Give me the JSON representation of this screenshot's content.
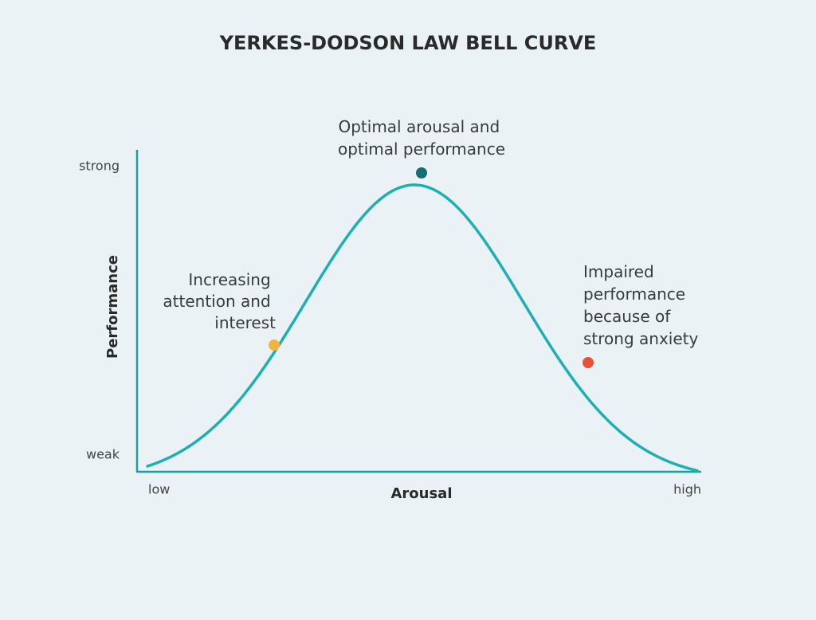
{
  "title": "YERKES-DODSON LAW BELL CURVE",
  "y_axis": {
    "label": "Performance",
    "top": "strong",
    "bottom": "weak"
  },
  "x_axis": {
    "label": "Arousal",
    "left": "low",
    "right": "high"
  },
  "annotations": [
    {
      "lines": [
        "Increasing",
        "attention and",
        "interest"
      ]
    },
    {
      "lines": [
        "Optimal arousal and",
        "optimal performance"
      ]
    },
    {
      "lines": [
        "Impaired",
        "performance",
        "because of",
        "strong anxiety"
      ]
    }
  ]
}
